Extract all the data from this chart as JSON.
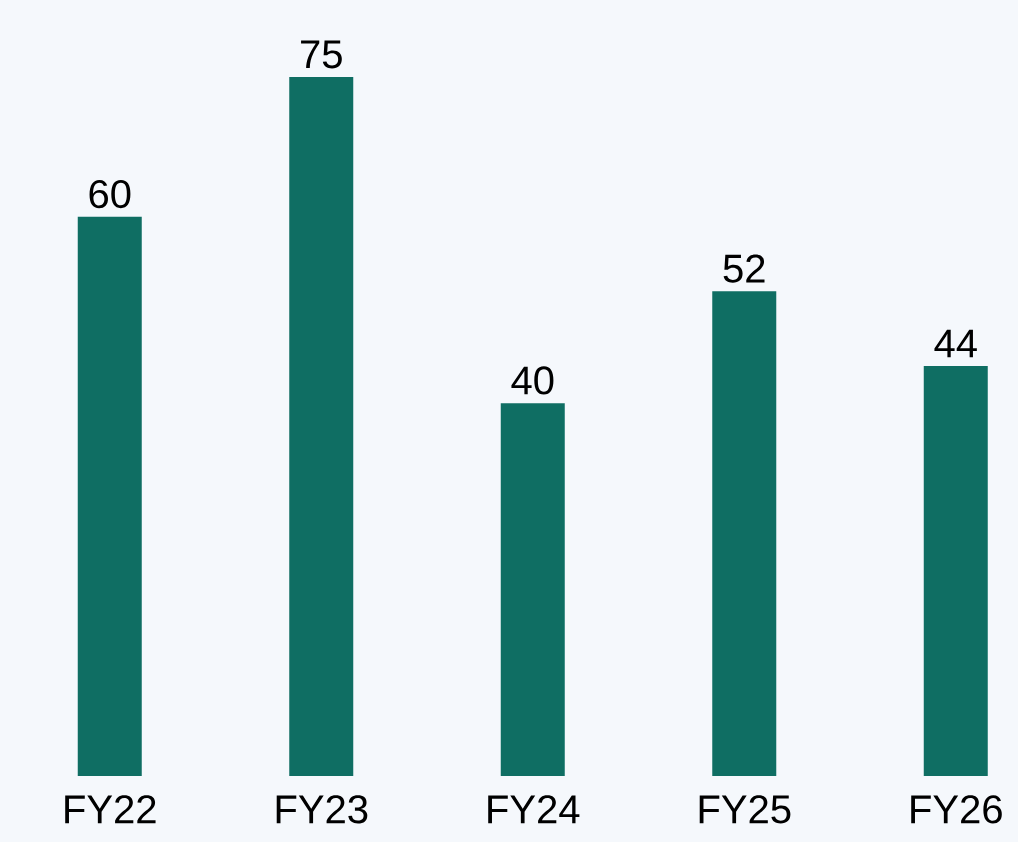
{
  "chart_data": {
    "type": "bar",
    "categories": [
      "FY22",
      "FY23",
      "FY24",
      "FY25",
      "FY26"
    ],
    "values": [
      60,
      75,
      40,
      52,
      44
    ],
    "color": "#0f6e63",
    "data_labels": true
  }
}
